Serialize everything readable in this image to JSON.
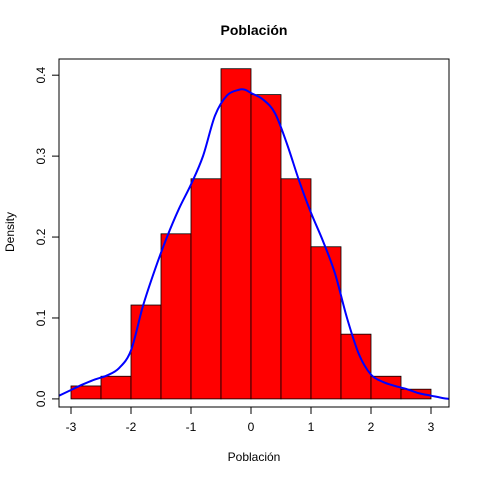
{
  "chart_data": {
    "type": "histogram",
    "title": "Población",
    "xlabel": "Población",
    "ylabel": "Density",
    "xlim": [
      -3.2,
      3.3
    ],
    "ylim": [
      -0.01,
      0.42
    ],
    "x_ticks": [
      -3,
      -2,
      -1,
      0,
      1,
      2,
      3
    ],
    "y_ticks": [
      0.0,
      0.1,
      0.2,
      0.3,
      0.4
    ],
    "x_tick_labels": [
      "-3",
      "-2",
      "-1",
      "0",
      "1",
      "2",
      "3"
    ],
    "y_tick_labels": [
      "0.0",
      "0.1",
      "0.2",
      "0.3",
      "0.4"
    ],
    "bins": [
      {
        "x0": -3.0,
        "x1": -2.5,
        "density": 0.016
      },
      {
        "x0": -2.5,
        "x1": -2.0,
        "density": 0.028
      },
      {
        "x0": -2.0,
        "x1": -1.5,
        "density": 0.116
      },
      {
        "x0": -1.5,
        "x1": -1.0,
        "density": 0.204
      },
      {
        "x0": -1.0,
        "x1": -0.5,
        "density": 0.272
      },
      {
        "x0": -0.5,
        "x1": 0.0,
        "density": 0.408
      },
      {
        "x0": 0.0,
        "x1": 0.5,
        "density": 0.376
      },
      {
        "x0": 0.5,
        "x1": 1.0,
        "density": 0.272
      },
      {
        "x0": 1.0,
        "x1": 1.5,
        "density": 0.188
      },
      {
        "x0": 1.5,
        "x1": 2.0,
        "density": 0.08
      },
      {
        "x0": 2.0,
        "x1": 2.5,
        "density": 0.028
      },
      {
        "x0": 2.5,
        "x1": 3.0,
        "density": 0.012
      }
    ],
    "density_curve": {
      "x": [
        -3.2,
        -3.0,
        -2.8,
        -2.6,
        -2.4,
        -2.2,
        -2.0,
        -1.8,
        -1.6,
        -1.4,
        -1.2,
        -1.0,
        -0.8,
        -0.6,
        -0.4,
        -0.2,
        -0.1,
        0.0,
        0.2,
        0.4,
        0.6,
        0.8,
        1.0,
        1.2,
        1.4,
        1.6,
        1.8,
        2.0,
        2.2,
        2.4,
        2.6,
        2.8,
        3.0,
        3.2,
        3.3
      ],
      "y": [
        0.004,
        0.011,
        0.018,
        0.024,
        0.029,
        0.038,
        0.06,
        0.115,
        0.16,
        0.2,
        0.235,
        0.265,
        0.3,
        0.35,
        0.375,
        0.382,
        0.382,
        0.378,
        0.37,
        0.353,
        0.315,
        0.27,
        0.23,
        0.195,
        0.155,
        0.1,
        0.055,
        0.03,
        0.021,
        0.016,
        0.012,
        0.007,
        0.004,
        0.001,
        0.0
      ]
    },
    "colors": {
      "bar_fill": "#ff0000",
      "bar_stroke": "#000000",
      "curve": "#0000ff",
      "axes": "#000000"
    },
    "grid": false
  }
}
